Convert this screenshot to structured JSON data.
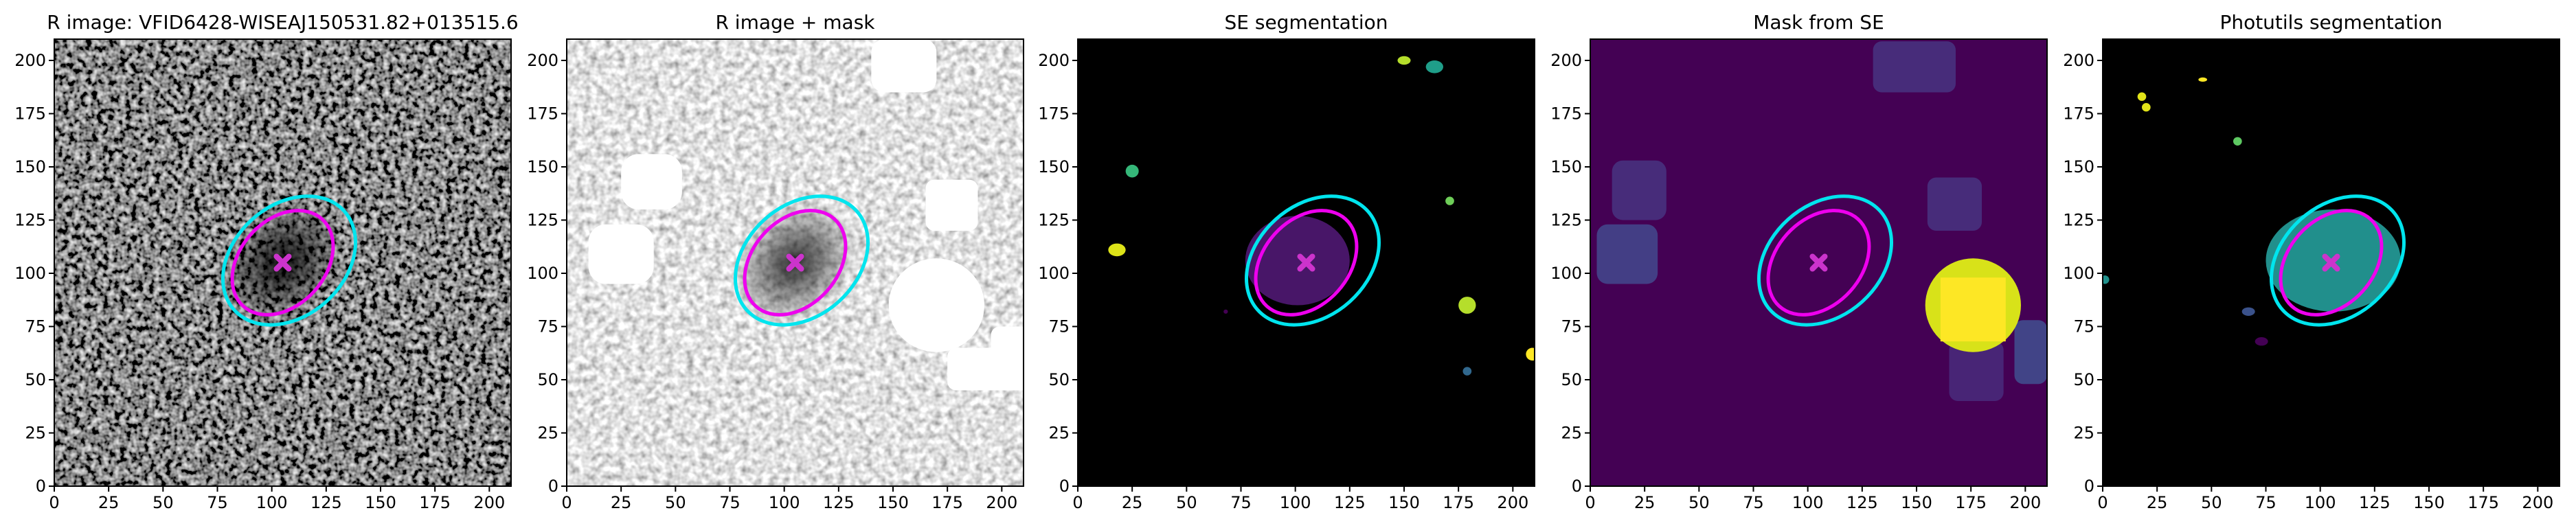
{
  "chart_data": [
    {
      "type": "image",
      "title": "R image: VFID6428-WISEAJ150531.82+013515.6",
      "background": "#505050",
      "noise": "dark",
      "xlim": [
        0,
        210
      ],
      "ylim": [
        0,
        210
      ],
      "xticks": [
        0,
        25,
        50,
        75,
        100,
        125,
        150,
        175,
        200
      ],
      "yticks": [
        0,
        25,
        50,
        75,
        100,
        125,
        150,
        175,
        200
      ],
      "ellipses": [
        {
          "x": 108,
          "y": 106,
          "a": 34,
          "b": 26,
          "angle": 42,
          "color": "#00e5ee"
        },
        {
          "x": 105,
          "y": 105,
          "a": 27,
          "b": 20,
          "angle": 48,
          "color": "#ee00ee"
        }
      ],
      "marker": {
        "x": 105,
        "y": 105,
        "color": "#cc33cc"
      }
    },
    {
      "type": "image",
      "title": "R image + mask",
      "background": "#c8c8c8",
      "noise": "light",
      "xlim": [
        0,
        210
      ],
      "ylim": [
        0,
        210
      ],
      "xticks": [
        0,
        25,
        50,
        75,
        100,
        125,
        150,
        175,
        200
      ],
      "yticks": [
        0,
        25,
        50,
        75,
        100,
        125,
        150,
        175,
        200
      ],
      "ellipses": [
        {
          "x": 108,
          "y": 106,
          "a": 34,
          "b": 26,
          "angle": 42,
          "color": "#00e5ee"
        },
        {
          "x": 105,
          "y": 105,
          "a": 27,
          "b": 20,
          "angle": 48,
          "color": "#ee00ee"
        }
      ],
      "marker": {
        "x": 105,
        "y": 105,
        "color": "#cc33cc"
      }
    },
    {
      "type": "image",
      "title": "SE segmentation",
      "background": "#000000",
      "xlim": [
        0,
        210
      ],
      "ylim": [
        0,
        210
      ],
      "xticks": [
        0,
        25,
        50,
        75,
        100,
        125,
        150,
        175,
        200
      ],
      "yticks": [
        0,
        25,
        50,
        75,
        100,
        125,
        150,
        175,
        200
      ],
      "ellipses": [
        {
          "x": 108,
          "y": 106,
          "a": 34,
          "b": 26,
          "angle": 42,
          "color": "#00e5ee"
        },
        {
          "x": 105,
          "y": 105,
          "a": 27,
          "b": 20,
          "angle": 48,
          "color": "#ee00ee"
        }
      ],
      "marker": {
        "x": 105,
        "y": 105,
        "color": "#cc33cc"
      }
    },
    {
      "type": "image",
      "title": "Mask from SE",
      "background": "#440154",
      "xlim": [
        0,
        210
      ],
      "ylim": [
        0,
        210
      ],
      "xticks": [
        0,
        25,
        50,
        75,
        100,
        125,
        150,
        175,
        200
      ],
      "yticks": [
        0,
        25,
        50,
        75,
        100,
        125,
        150,
        175,
        200
      ],
      "ellipses": [
        {
          "x": 108,
          "y": 106,
          "a": 34,
          "b": 26,
          "angle": 42,
          "color": "#00e5ee"
        },
        {
          "x": 105,
          "y": 105,
          "a": 27,
          "b": 20,
          "angle": 48,
          "color": "#ee00ee"
        }
      ],
      "marker": {
        "x": 105,
        "y": 105,
        "color": "#cc33cc"
      }
    },
    {
      "type": "image",
      "title": "Photutils segmentation",
      "background": "#000000",
      "xlim": [
        0,
        210
      ],
      "ylim": [
        0,
        210
      ],
      "xticks": [
        0,
        25,
        50,
        75,
        100,
        125,
        150,
        175,
        200
      ],
      "yticks": [
        0,
        25,
        50,
        75,
        100,
        125,
        150,
        175,
        200
      ],
      "ellipses": [
        {
          "x": 108,
          "y": 106,
          "a": 34,
          "b": 26,
          "angle": 42,
          "color": "#00e5ee"
        },
        {
          "x": 105,
          "y": 105,
          "a": 27,
          "b": 20,
          "angle": 48,
          "color": "#ee00ee"
        }
      ],
      "marker": {
        "x": 105,
        "y": 105,
        "color": "#cc33cc"
      }
    }
  ]
}
